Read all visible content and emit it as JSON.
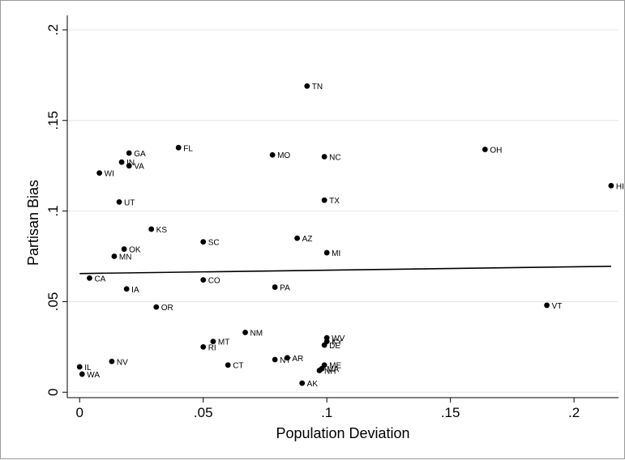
{
  "chart_data": {
    "type": "scatter",
    "xlabel": "Population Deviation",
    "ylabel": "Partisan Bias",
    "xlim": [
      -0.005,
      0.218
    ],
    "ylim": [
      -0.003,
      0.208
    ],
    "x_ticks": [
      {
        "value": 0,
        "label": "0"
      },
      {
        "value": 0.05,
        "label": ".05"
      },
      {
        "value": 0.1,
        "label": ".1"
      },
      {
        "value": 0.15,
        "label": ".15"
      },
      {
        "value": 0.2,
        "label": ".2"
      }
    ],
    "y_ticks": [
      {
        "value": 0,
        "label": "0"
      },
      {
        "value": 0.05,
        "label": ".05"
      },
      {
        "value": 0.1,
        "label": ".1"
      },
      {
        "value": 0.15,
        "label": ".15"
      },
      {
        "value": 0.2,
        "label": ".2"
      }
    ],
    "grid": "horizontal",
    "fit_line": {
      "x": [
        0,
        0.215
      ],
      "y": [
        0.0655,
        0.0695
      ]
    },
    "points": [
      {
        "label": "TN",
        "x": 0.092,
        "y": 0.169
      },
      {
        "label": "FL",
        "x": 0.04,
        "y": 0.135
      },
      {
        "label": "OH",
        "x": 0.164,
        "y": 0.134
      },
      {
        "label": "GA",
        "x": 0.02,
        "y": 0.132
      },
      {
        "label": "MO",
        "x": 0.078,
        "y": 0.131
      },
      {
        "label": "NC",
        "x": 0.099,
        "y": 0.13
      },
      {
        "label": "IN",
        "x": 0.017,
        "y": 0.127
      },
      {
        "label": "VA",
        "x": 0.02,
        "y": 0.125
      },
      {
        "label": "WI",
        "x": 0.008,
        "y": 0.121
      },
      {
        "label": "HI",
        "x": 0.215,
        "y": 0.114
      },
      {
        "label": "UT",
        "x": 0.016,
        "y": 0.105
      },
      {
        "label": "TX",
        "x": 0.099,
        "y": 0.106
      },
      {
        "label": "KS",
        "x": 0.029,
        "y": 0.09
      },
      {
        "label": "AZ",
        "x": 0.088,
        "y": 0.085
      },
      {
        "label": "SC",
        "x": 0.05,
        "y": 0.083
      },
      {
        "label": "OK",
        "x": 0.018,
        "y": 0.079
      },
      {
        "label": "MI",
        "x": 0.1,
        "y": 0.077
      },
      {
        "label": "MN",
        "x": 0.014,
        "y": 0.075
      },
      {
        "label": "CA",
        "x": 0.004,
        "y": 0.063
      },
      {
        "label": "CO",
        "x": 0.05,
        "y": 0.062
      },
      {
        "label": "PA",
        "x": 0.079,
        "y": 0.058
      },
      {
        "label": "IA",
        "x": 0.019,
        "y": 0.057
      },
      {
        "label": "VT",
        "x": 0.189,
        "y": 0.048
      },
      {
        "label": "OR",
        "x": 0.031,
        "y": 0.047
      },
      {
        "label": "NM",
        "x": 0.067,
        "y": 0.033
      },
      {
        "label": "WV",
        "x": 0.1,
        "y": 0.03
      },
      {
        "label": "KY",
        "x": 0.1,
        "y": 0.028
      },
      {
        "label": "MT",
        "x": 0.054,
        "y": 0.028
      },
      {
        "label": "DE",
        "x": 0.099,
        "y": 0.026
      },
      {
        "label": "RI",
        "x": 0.05,
        "y": 0.025
      },
      {
        "label": "AR",
        "x": 0.084,
        "y": 0.019
      },
      {
        "label": "NY",
        "x": 0.079,
        "y": 0.018
      },
      {
        "label": "NV",
        "x": 0.013,
        "y": 0.017
      },
      {
        "label": "CT",
        "x": 0.06,
        "y": 0.015
      },
      {
        "label": "ME",
        "x": 0.099,
        "y": 0.015
      },
      {
        "label": "IL",
        "x": 0.0,
        "y": 0.014
      },
      {
        "label": "MA",
        "x": 0.098,
        "y": 0.013
      },
      {
        "label": "NH",
        "x": 0.097,
        "y": 0.012
      },
      {
        "label": "WA",
        "x": 0.001,
        "y": 0.01
      },
      {
        "label": "AK",
        "x": 0.09,
        "y": 0.005
      }
    ]
  }
}
